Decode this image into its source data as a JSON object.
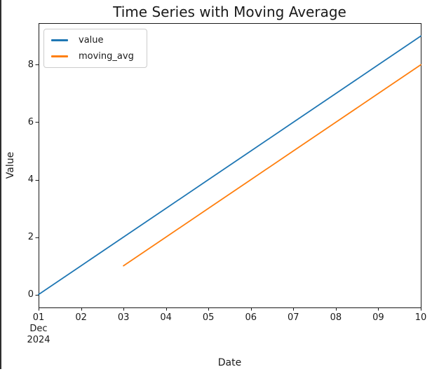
{
  "figure": {
    "background": "#ffffff",
    "left_border_color": "#2e2e2e",
    "axis_color": "#1a1a1a"
  },
  "chart_data": {
    "type": "line",
    "title": "Time Series with Moving Average",
    "xlabel": "Date",
    "ylabel": "Value",
    "x_tick_labels": [
      "01",
      "02",
      "03",
      "04",
      "05",
      "06",
      "07",
      "08",
      "09",
      "10"
    ],
    "x_first_tick_sublabels": [
      "Dec",
      "2024"
    ],
    "x_tick_values": [
      1,
      2,
      3,
      4,
      5,
      6,
      7,
      8,
      9,
      10
    ],
    "y_ticks": [
      0,
      2,
      4,
      6,
      8
    ],
    "xlim": [
      1,
      10
    ],
    "ylim": [
      -0.45,
      9.45
    ],
    "grid": false,
    "legend": {
      "position": "upper-left",
      "entries": [
        "value",
        "moving_avg"
      ]
    },
    "series": [
      {
        "name": "value",
        "color": "#1f77b4",
        "x": [
          1,
          2,
          3,
          4,
          5,
          6,
          7,
          8,
          9,
          10
        ],
        "y": [
          0,
          1,
          2,
          3,
          4,
          5,
          6,
          7,
          8,
          9
        ]
      },
      {
        "name": "moving_avg",
        "color": "#ff7f0e",
        "x": [
          3,
          4,
          5,
          6,
          7,
          8,
          9,
          10
        ],
        "y": [
          1,
          2,
          3,
          4,
          5,
          6,
          7,
          8
        ]
      }
    ]
  }
}
